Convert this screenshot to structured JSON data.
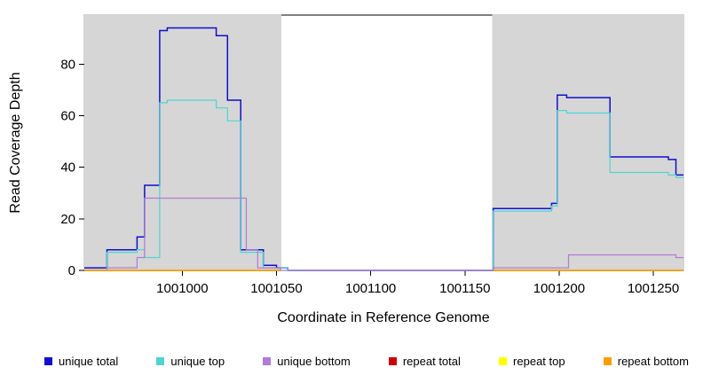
{
  "chart_data": {
    "type": "line",
    "title": "",
    "xlabel": "Coordinate in Reference Genome",
    "ylabel": "Read Coverage Depth",
    "xlim": [
      1000948,
      1001266
    ],
    "ylim": [
      0,
      99
    ],
    "xticks": [
      1001000,
      1001050,
      1001100,
      1001150,
      1001200,
      1001250
    ],
    "yticks": [
      0,
      20,
      40,
      60,
      80
    ],
    "grid": false,
    "legend_position": "bottom",
    "shaded_regions": {
      "color": "#d6d6d6",
      "x_ranges": [
        [
          1000948,
          1001052
        ],
        [
          1001165,
          1001266
        ]
      ]
    },
    "series": [
      {
        "name": "unique total",
        "color": "#0f0fcd",
        "width": 1.5,
        "segments": [
          [
            [
              1000948,
              1
            ],
            [
              1000960,
              1
            ],
            [
              1000960,
              8
            ],
            [
              1000976,
              8
            ],
            [
              1000976,
              13
            ],
            [
              1000980,
              13
            ],
            [
              1000980,
              33
            ],
            [
              1000988,
              33
            ],
            [
              1000988,
              93
            ],
            [
              1000992,
              93
            ],
            [
              1000992,
              94
            ],
            [
              1001018,
              94
            ],
            [
              1001018,
              91
            ],
            [
              1001024,
              91
            ],
            [
              1001024,
              66
            ],
            [
              1001031,
              66
            ],
            [
              1001031,
              8
            ],
            [
              1001043,
              8
            ],
            [
              1001043,
              2
            ],
            [
              1001050,
              2
            ],
            [
              1001050,
              1
            ],
            [
              1001056,
              1
            ],
            [
              1001056,
              0
            ],
            [
              1001165,
              0
            ],
            [
              1001165,
              24
            ],
            [
              1001196,
              24
            ],
            [
              1001196,
              26
            ],
            [
              1001199,
              26
            ],
            [
              1001199,
              68
            ],
            [
              1001204,
              68
            ],
            [
              1001204,
              67
            ],
            [
              1001227,
              67
            ],
            [
              1001227,
              44
            ],
            [
              1001258,
              44
            ],
            [
              1001258,
              43
            ],
            [
              1001262,
              43
            ],
            [
              1001262,
              37
            ],
            [
              1001266,
              37
            ]
          ]
        ]
      },
      {
        "name": "unique top",
        "color": "#4fd4d4",
        "width": 1.2,
        "segments": [
          [
            [
              1000948,
              0
            ],
            [
              1000960,
              0
            ],
            [
              1000960,
              7
            ],
            [
              1000976,
              7
            ],
            [
              1000976,
              8
            ],
            [
              1000980,
              8
            ],
            [
              1000980,
              5
            ],
            [
              1000988,
              5
            ],
            [
              1000988,
              65
            ],
            [
              1000992,
              65
            ],
            [
              1000992,
              66
            ],
            [
              1001018,
              66
            ],
            [
              1001018,
              63
            ],
            [
              1001024,
              63
            ],
            [
              1001024,
              58
            ],
            [
              1001031,
              58
            ],
            [
              1001031,
              7
            ],
            [
              1001043,
              7
            ],
            [
              1001043,
              1
            ],
            [
              1001056,
              1
            ],
            [
              1001056,
              0
            ],
            [
              1001165,
              0
            ],
            [
              1001165,
              23
            ],
            [
              1001196,
              23
            ],
            [
              1001196,
              25
            ],
            [
              1001199,
              25
            ],
            [
              1001199,
              62
            ],
            [
              1001204,
              62
            ],
            [
              1001204,
              61
            ],
            [
              1001227,
              61
            ],
            [
              1001227,
              38
            ],
            [
              1001258,
              38
            ],
            [
              1001258,
              37
            ],
            [
              1001262,
              37
            ],
            [
              1001262,
              36
            ],
            [
              1001266,
              36
            ]
          ]
        ]
      },
      {
        "name": "unique bottom",
        "color": "#b07cd6",
        "width": 1.2,
        "segments": [
          [
            [
              1000948,
              0
            ],
            [
              1000960,
              0
            ],
            [
              1000960,
              1
            ],
            [
              1000976,
              1
            ],
            [
              1000976,
              5
            ],
            [
              1000980,
              5
            ],
            [
              1000980,
              28
            ],
            [
              1001034,
              28
            ],
            [
              1001034,
              8
            ],
            [
              1001040,
              8
            ],
            [
              1001040,
              1
            ],
            [
              1001052,
              1
            ],
            [
              1001052,
              0
            ],
            [
              1001165,
              0
            ],
            [
              1001165,
              1
            ],
            [
              1001205,
              1
            ],
            [
              1001205,
              6
            ],
            [
              1001262,
              6
            ],
            [
              1001262,
              5
            ],
            [
              1001266,
              5
            ]
          ]
        ]
      },
      {
        "name": "repeat total",
        "color": "#cc0000",
        "width": 1.2,
        "segments": [
          [
            [
              1000948,
              0
            ],
            [
              1001052,
              0
            ]
          ],
          [
            [
              1001165,
              0
            ],
            [
              1001266,
              0
            ]
          ]
        ]
      },
      {
        "name": "repeat top",
        "color": "#ffff00",
        "width": 1.2,
        "segments": [
          [
            [
              1000948,
              0
            ],
            [
              1001052,
              0
            ]
          ],
          [
            [
              1001165,
              0
            ],
            [
              1001266,
              0
            ]
          ]
        ]
      },
      {
        "name": "repeat bottom",
        "color": "#ff9d00",
        "width": 1.4,
        "segments": [
          [
            [
              1000948,
              0
            ],
            [
              1001052,
              0
            ]
          ],
          [
            [
              1001165,
              0
            ],
            [
              1001266,
              0
            ]
          ]
        ]
      }
    ]
  }
}
